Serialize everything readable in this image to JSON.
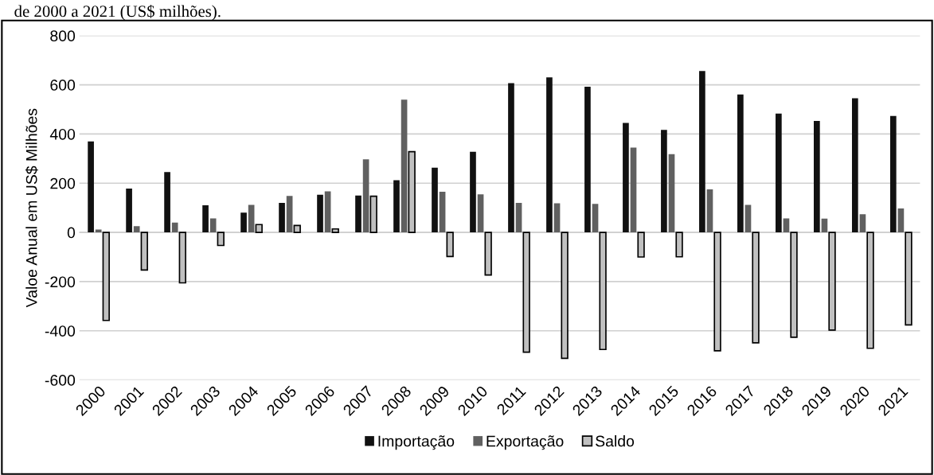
{
  "chart_data": {
    "type": "bar",
    "title": "de 2000 a 2021 (US$ milhões).",
    "ylabel": "Valoe Anual em US$ Milhões",
    "categories": [
      "2000",
      "2001",
      "2002",
      "2003",
      "2004",
      "2005",
      "2006",
      "2007",
      "2008",
      "2009",
      "2010",
      "2011",
      "2012",
      "2013",
      "2014",
      "2015",
      "2016",
      "2017",
      "2018",
      "2019",
      "2020",
      "2021"
    ],
    "series": [
      {
        "name": "Importação",
        "color": "#111111",
        "values": [
          370,
          178,
          245,
          110,
          80,
          120,
          153,
          150,
          212,
          263,
          328,
          607,
          630,
          592,
          445,
          417,
          656,
          561,
          483,
          453,
          545,
          473
        ]
      },
      {
        "name": "Exportação",
        "color": "#606060",
        "values": [
          12,
          25,
          40,
          57,
          112,
          148,
          167,
          297,
          540,
          165,
          155,
          120,
          118,
          116,
          345,
          318,
          175,
          112,
          57,
          56,
          74,
          97
        ]
      },
      {
        "name": "Saldo",
        "color": "#c0c0c0",
        "values": [
          -358,
          -153,
          -205,
          -53,
          32,
          28,
          14,
          147,
          328,
          -98,
          -173,
          -487,
          -512,
          -476,
          -100,
          -99,
          -481,
          -449,
          -426,
          -397,
          -471,
          -376
        ]
      }
    ],
    "ylim": [
      -600,
      800
    ],
    "yticks": [
      -600,
      -400,
      -200,
      0,
      200,
      400,
      600,
      800
    ],
    "grid": "y",
    "legend": "bottom"
  }
}
